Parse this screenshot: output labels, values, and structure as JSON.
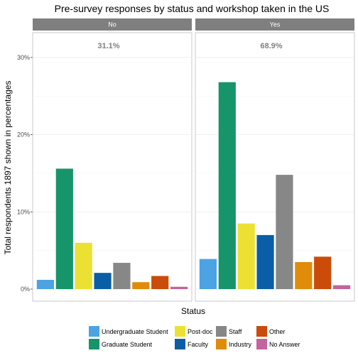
{
  "chart_data": {
    "type": "bar",
    "title": "Pre-survey responses by status and workshop taken in the US",
    "xlabel": "Status",
    "ylabel": "Total respondents 1897 shown in percentages",
    "ylim": [
      0,
      32
    ],
    "yticks": [
      0,
      10,
      20,
      30
    ],
    "ytick_labels": [
      "0%",
      "10%",
      "20%",
      "30%"
    ],
    "grid": true,
    "legend_position": "bottom",
    "categories": [
      "Undergraduate Student",
      "Graduate Student",
      "Post-doc",
      "Faculty",
      "Staff",
      "Industry",
      "Other",
      "No Answer"
    ],
    "colors": [
      "#4CA3E3",
      "#16946A",
      "#ECE132",
      "#0A5EA6",
      "#878787",
      "#E08C0A",
      "#CB4C0A",
      "#C3649C"
    ],
    "panels": [
      {
        "label": "No",
        "total_label": "31.1%",
        "values": [
          1.2,
          15.6,
          6.0,
          2.1,
          3.4,
          0.9,
          1.7,
          0.3
        ]
      },
      {
        "label": "Yes",
        "total_label": "68.9%",
        "values": [
          3.9,
          26.8,
          8.5,
          7.0,
          14.8,
          3.5,
          4.2,
          0.5
        ]
      }
    ]
  }
}
